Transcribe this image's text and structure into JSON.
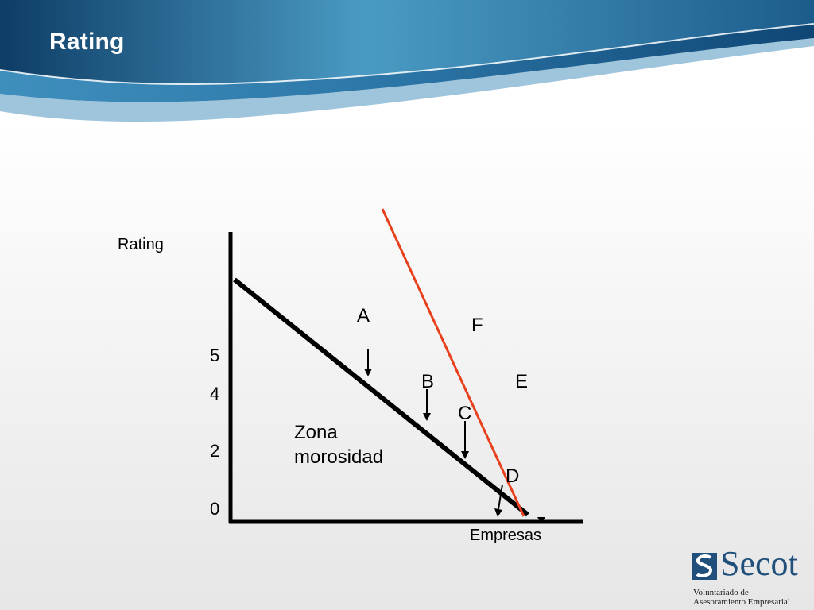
{
  "slide": {
    "title": "Rating"
  },
  "diagram": {
    "y_axis_label": "Rating",
    "x_axis_label": "Empresas",
    "y_ticks": [
      "5",
      "4",
      "2",
      "0"
    ],
    "zone_label_line1": "Zona",
    "zone_label_line2": "morosidad",
    "points": {
      "a": "A",
      "b": "B",
      "c": "C",
      "d": "D",
      "e": "E",
      "f": "F"
    },
    "colors": {
      "black_line": "#000000",
      "red_line": "#e8401c"
    }
  },
  "logo": {
    "name": "Secot",
    "tagline_1": "Voluntariado de",
    "tagline_2": "Asesoramiento Empresarial",
    "color": "#1f4f7a"
  },
  "banner": {
    "colors": [
      "#0e3d66",
      "#4a9bc4",
      "#1c5c8c"
    ]
  }
}
